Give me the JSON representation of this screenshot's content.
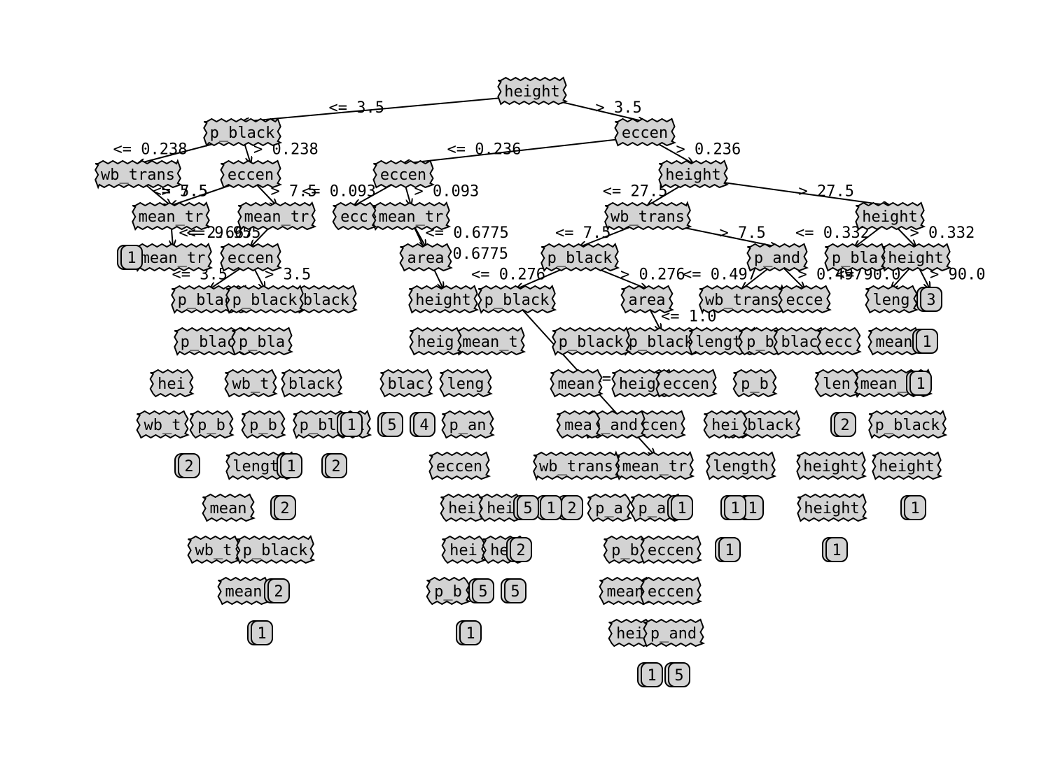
{
  "diagram": {
    "nodes": [
      {
        "id": "n0",
        "label": "height"
      },
      {
        "id": "n1",
        "label": "p_black"
      },
      {
        "id": "n2",
        "label": "eccen"
      },
      {
        "id": "n3",
        "label": "wb_trans"
      },
      {
        "id": "n4",
        "label": "eccen"
      },
      {
        "id": "n5",
        "label": "eccen"
      },
      {
        "id": "n6",
        "label": "height"
      },
      {
        "id": "n7",
        "label": "mean_tr"
      },
      {
        "id": "n8",
        "label": "mean_tr"
      },
      {
        "id": "n9",
        "label": "wb_trans"
      },
      {
        "id": "n10",
        "label": "p_black"
      },
      {
        "id": "n11",
        "label": "p_black"
      },
      {
        "id": "n12",
        "label": "p_and"
      },
      {
        "id": "n13",
        "label": "height"
      },
      {
        "id": "n14",
        "label": "area"
      },
      {
        "id": "n15",
        "label": "eccen"
      },
      {
        "id": "n16",
        "label": "p_black"
      },
      {
        "id": "n17",
        "label": "area"
      },
      {
        "id": "n18",
        "label": "height"
      },
      {
        "id": "n19",
        "label": "wb_trans"
      },
      {
        "id": "n20",
        "label": "mean_tr"
      },
      {
        "id": "n21",
        "label": "p_black"
      },
      {
        "id": "n22",
        "label": "black"
      },
      {
        "id": "n23",
        "label": "p_black"
      },
      {
        "id": "n24",
        "label": "height"
      },
      {
        "id": "n25",
        "label": "mean_tr"
      },
      {
        "id": "n26",
        "label": "length"
      },
      {
        "id": "n27",
        "label": "p_black"
      },
      {
        "id": "n28",
        "label": "mean_tr"
      },
      {
        "id": "n29",
        "label": "height"
      },
      {
        "id": "n30",
        "label": "p_black"
      },
      {
        "id": "n31",
        "label": "eccen"
      },
      {
        "id": "n32",
        "label": "mean_tr"
      },
      {
        "id": "n33",
        "label": "eccen"
      },
      {
        "id": "n34",
        "label": "p_and"
      },
      {
        "id": "n35",
        "label": "length"
      },
      {
        "id": "n36",
        "label": "height"
      },
      {
        "id": "n37",
        "label": "p_black"
      },
      {
        "id": "n38",
        "label": "height"
      },
      {
        "id": "n39",
        "label": "wb_trans"
      },
      {
        "id": "n40",
        "label": "p_black"
      },
      {
        "id": "n41",
        "label": "mean"
      },
      {
        "id": "n42",
        "label": "length"
      },
      {
        "id": "n43",
        "label": "p_black"
      },
      {
        "id": "n44",
        "label": "wb_t"
      },
      {
        "id": "n45",
        "label": "mean"
      },
      {
        "id": "n46",
        "label": "p_b"
      },
      {
        "id": "n47",
        "label": "hei"
      },
      {
        "id": "n48",
        "label": "p_b"
      },
      {
        "id": "n49",
        "label": "mean_t"
      },
      {
        "id": "n50",
        "label": "black"
      },
      {
        "id": "n51",
        "label": "wb_t"
      },
      {
        "id": "n52",
        "label": "p_an"
      },
      {
        "id": "n53",
        "label": "leng"
      },
      {
        "id": "n54",
        "label": "heigh"
      },
      {
        "id": "n55",
        "label": "ecc"
      },
      {
        "id": "n56",
        "label": "blac"
      },
      {
        "id": "n57",
        "label": "mea"
      },
      {
        "id": "n58",
        "label": "p_bla"
      },
      {
        "id": "n59",
        "label": "p_bla"
      },
      {
        "id": "n60",
        "label": "hei"
      },
      {
        "id": "n61",
        "label": "heig"
      },
      {
        "id": "n62",
        "label": "ecce"
      },
      {
        "id": "n63",
        "label": "hei"
      },
      {
        "id": "n64",
        "label": "leng"
      },
      {
        "id": "n65",
        "label": "p_b"
      },
      {
        "id": "n66",
        "label": "blac"
      },
      {
        "id": "n67",
        "label": "ecc"
      },
      {
        "id": "n68",
        "label": "mean"
      },
      {
        "id": "n69",
        "label": "hei"
      },
      {
        "id": "n70",
        "label": "hei"
      },
      {
        "id": "n71",
        "label": "eccen"
      },
      {
        "id": "n72",
        "label": "p_b"
      },
      {
        "id": "n73",
        "label": "len"
      }
    ],
    "leaves": [
      {
        "id": "l0",
        "label": "1"
      },
      {
        "id": "l1",
        "label": "4"
      },
      {
        "id": "l2",
        "label": "5"
      },
      {
        "id": "l3",
        "label": "2"
      },
      {
        "id": "l4",
        "label": "1"
      },
      {
        "id": "l5",
        "label": "2"
      },
      {
        "id": "l6",
        "label": "2"
      },
      {
        "id": "l7",
        "label": "2"
      },
      {
        "id": "l8",
        "label": "1"
      },
      {
        "id": "l9",
        "label": "5"
      },
      {
        "id": "l10",
        "label": "1"
      },
      {
        "id": "l11",
        "label": "2"
      },
      {
        "id": "l12",
        "label": "1"
      },
      {
        "id": "l13",
        "label": "1"
      },
      {
        "id": "l14",
        "label": "2"
      },
      {
        "id": "l15",
        "label": "5"
      },
      {
        "id": "l16",
        "label": "5"
      },
      {
        "id": "l17",
        "label": "1"
      },
      {
        "id": "l18",
        "label": "1"
      },
      {
        "id": "l19",
        "label": "1"
      },
      {
        "id": "l20",
        "label": "1"
      },
      {
        "id": "l21",
        "label": "1"
      },
      {
        "id": "l22",
        "label": "1"
      },
      {
        "id": "l23",
        "label": "5"
      },
      {
        "id": "l24",
        "label": "3"
      },
      {
        "id": "l25",
        "label": "1"
      },
      {
        "id": "l26",
        "label": "1"
      },
      {
        "id": "l27",
        "label": "1"
      },
      {
        "id": "l28",
        "label": "2"
      }
    ],
    "edges": [
      {
        "from": "n0",
        "to": "n1",
        "label": "<= 3.5"
      },
      {
        "from": "n0",
        "to": "n2",
        "label": "> 3.5"
      },
      {
        "from": "n1",
        "to": "n3",
        "label": "<= 0.238"
      },
      {
        "from": "n1",
        "to": "n4",
        "label": "> 0.238"
      },
      {
        "from": "n2",
        "to": "n5",
        "label": "<= 0.236"
      },
      {
        "from": "n2",
        "to": "n6",
        "label": "> 0.236"
      },
      {
        "from": "n3",
        "to": "n47",
        "label": "<= 5.5"
      },
      {
        "from": "n3",
        "to": "n7",
        "label": "> 5.5"
      },
      {
        "from": "n4",
        "to": "n7",
        "label": "<= 7.5"
      },
      {
        "from": "n4",
        "to": "n8",
        "label": "> 7.5"
      },
      {
        "from": "n5",
        "to": "n55",
        "label": "<= 0.093"
      },
      {
        "from": "n5",
        "to": "n20",
        "label": "> 0.093"
      },
      {
        "from": "n6",
        "to": "n9",
        "label": "<= 27.5"
      },
      {
        "from": "n6",
        "to": "n13",
        "label": "> 27.5"
      },
      {
        "from": "n9",
        "to": "n10",
        "label": "<= 7.5"
      },
      {
        "from": "n9",
        "to": "n12",
        "label": "> 7.5"
      },
      {
        "from": "n10",
        "to": "n16",
        "label": "<= 0.276"
      },
      {
        "from": "n10",
        "to": "n14",
        "label": "> 0.276"
      },
      {
        "from": "n13",
        "to": "n59",
        "label": "<= 0.332"
      },
      {
        "from": "n13",
        "to": "n18",
        "label": "> 0.332"
      },
      {
        "from": "n7",
        "to": "n25",
        "label": "<= 2.667"
      },
      {
        "from": "n8",
        "to": "n15",
        "label": "<= 9.955"
      },
      {
        "from": "n15",
        "to": "n21",
        "label": "<= 3.5"
      },
      {
        "from": "n15",
        "to": "n27",
        "label": "> 3.5"
      },
      {
        "from": "n20",
        "to": "n17",
        "label": "<= 0.6775"
      },
      {
        "from": "n20",
        "to": "n24",
        "label": "> 0.6775"
      },
      {
        "from": "n12",
        "to": "n19",
        "label": "<= 0.497"
      },
      {
        "from": "n12",
        "to": "n62",
        "label": "> 0.497"
      },
      {
        "from": "n16",
        "to": "n28",
        "label": "<= 0.178"
      },
      {
        "from": "n14",
        "to": "n30",
        "label": "<= 1.0"
      },
      {
        "from": "n18",
        "to": "n64",
        "label": "<= 90.0"
      },
      {
        "from": "n18",
        "to": "l24",
        "label": "> 90.0"
      }
    ]
  }
}
